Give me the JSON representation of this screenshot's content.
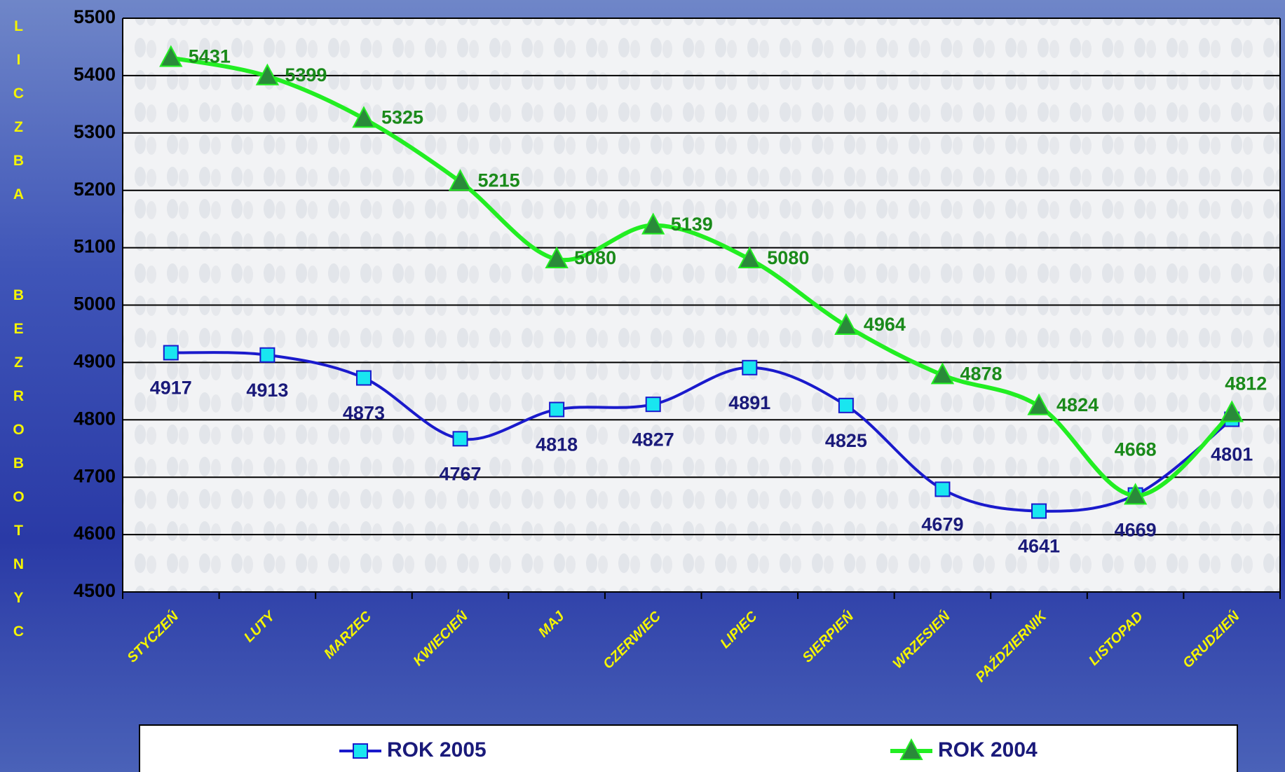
{
  "chart_data": {
    "type": "line",
    "y_label": "LICZBA  BEZROBOTNYC",
    "categories": [
      "STYCZEŃ",
      "LUTY",
      "MARZEC",
      "KWIECIEŃ",
      "MAJ",
      "CZERWIEC",
      "LIPIEC",
      "SIERPIEŃ",
      "WRZESIEŃ",
      "PAŹDZIERNIK",
      "LISTOPAD",
      "GRUDZIEŃ"
    ],
    "series": [
      {
        "name": "ROK 2005",
        "color": "#1a1acc",
        "marker": "square",
        "marker_color": "#19e6f0",
        "values": [
          4917,
          4913,
          4873,
          4767,
          4818,
          4827,
          4891,
          4825,
          4679,
          4641,
          4669,
          4801
        ]
      },
      {
        "name": "ROK 2004",
        "color": "#22ee22",
        "marker": "triangle",
        "marker_color": "#2a8a3a",
        "values": [
          5431,
          5399,
          5325,
          5215,
          5080,
          5139,
          5080,
          4964,
          4878,
          4824,
          4668,
          4812
        ]
      }
    ],
    "ylim": [
      4500,
      5500
    ],
    "yticks": [
      4500,
      4600,
      4700,
      4800,
      4900,
      5000,
      5100,
      5200,
      5300,
      5400,
      5500
    ],
    "grid": true,
    "legend": "bottom"
  }
}
